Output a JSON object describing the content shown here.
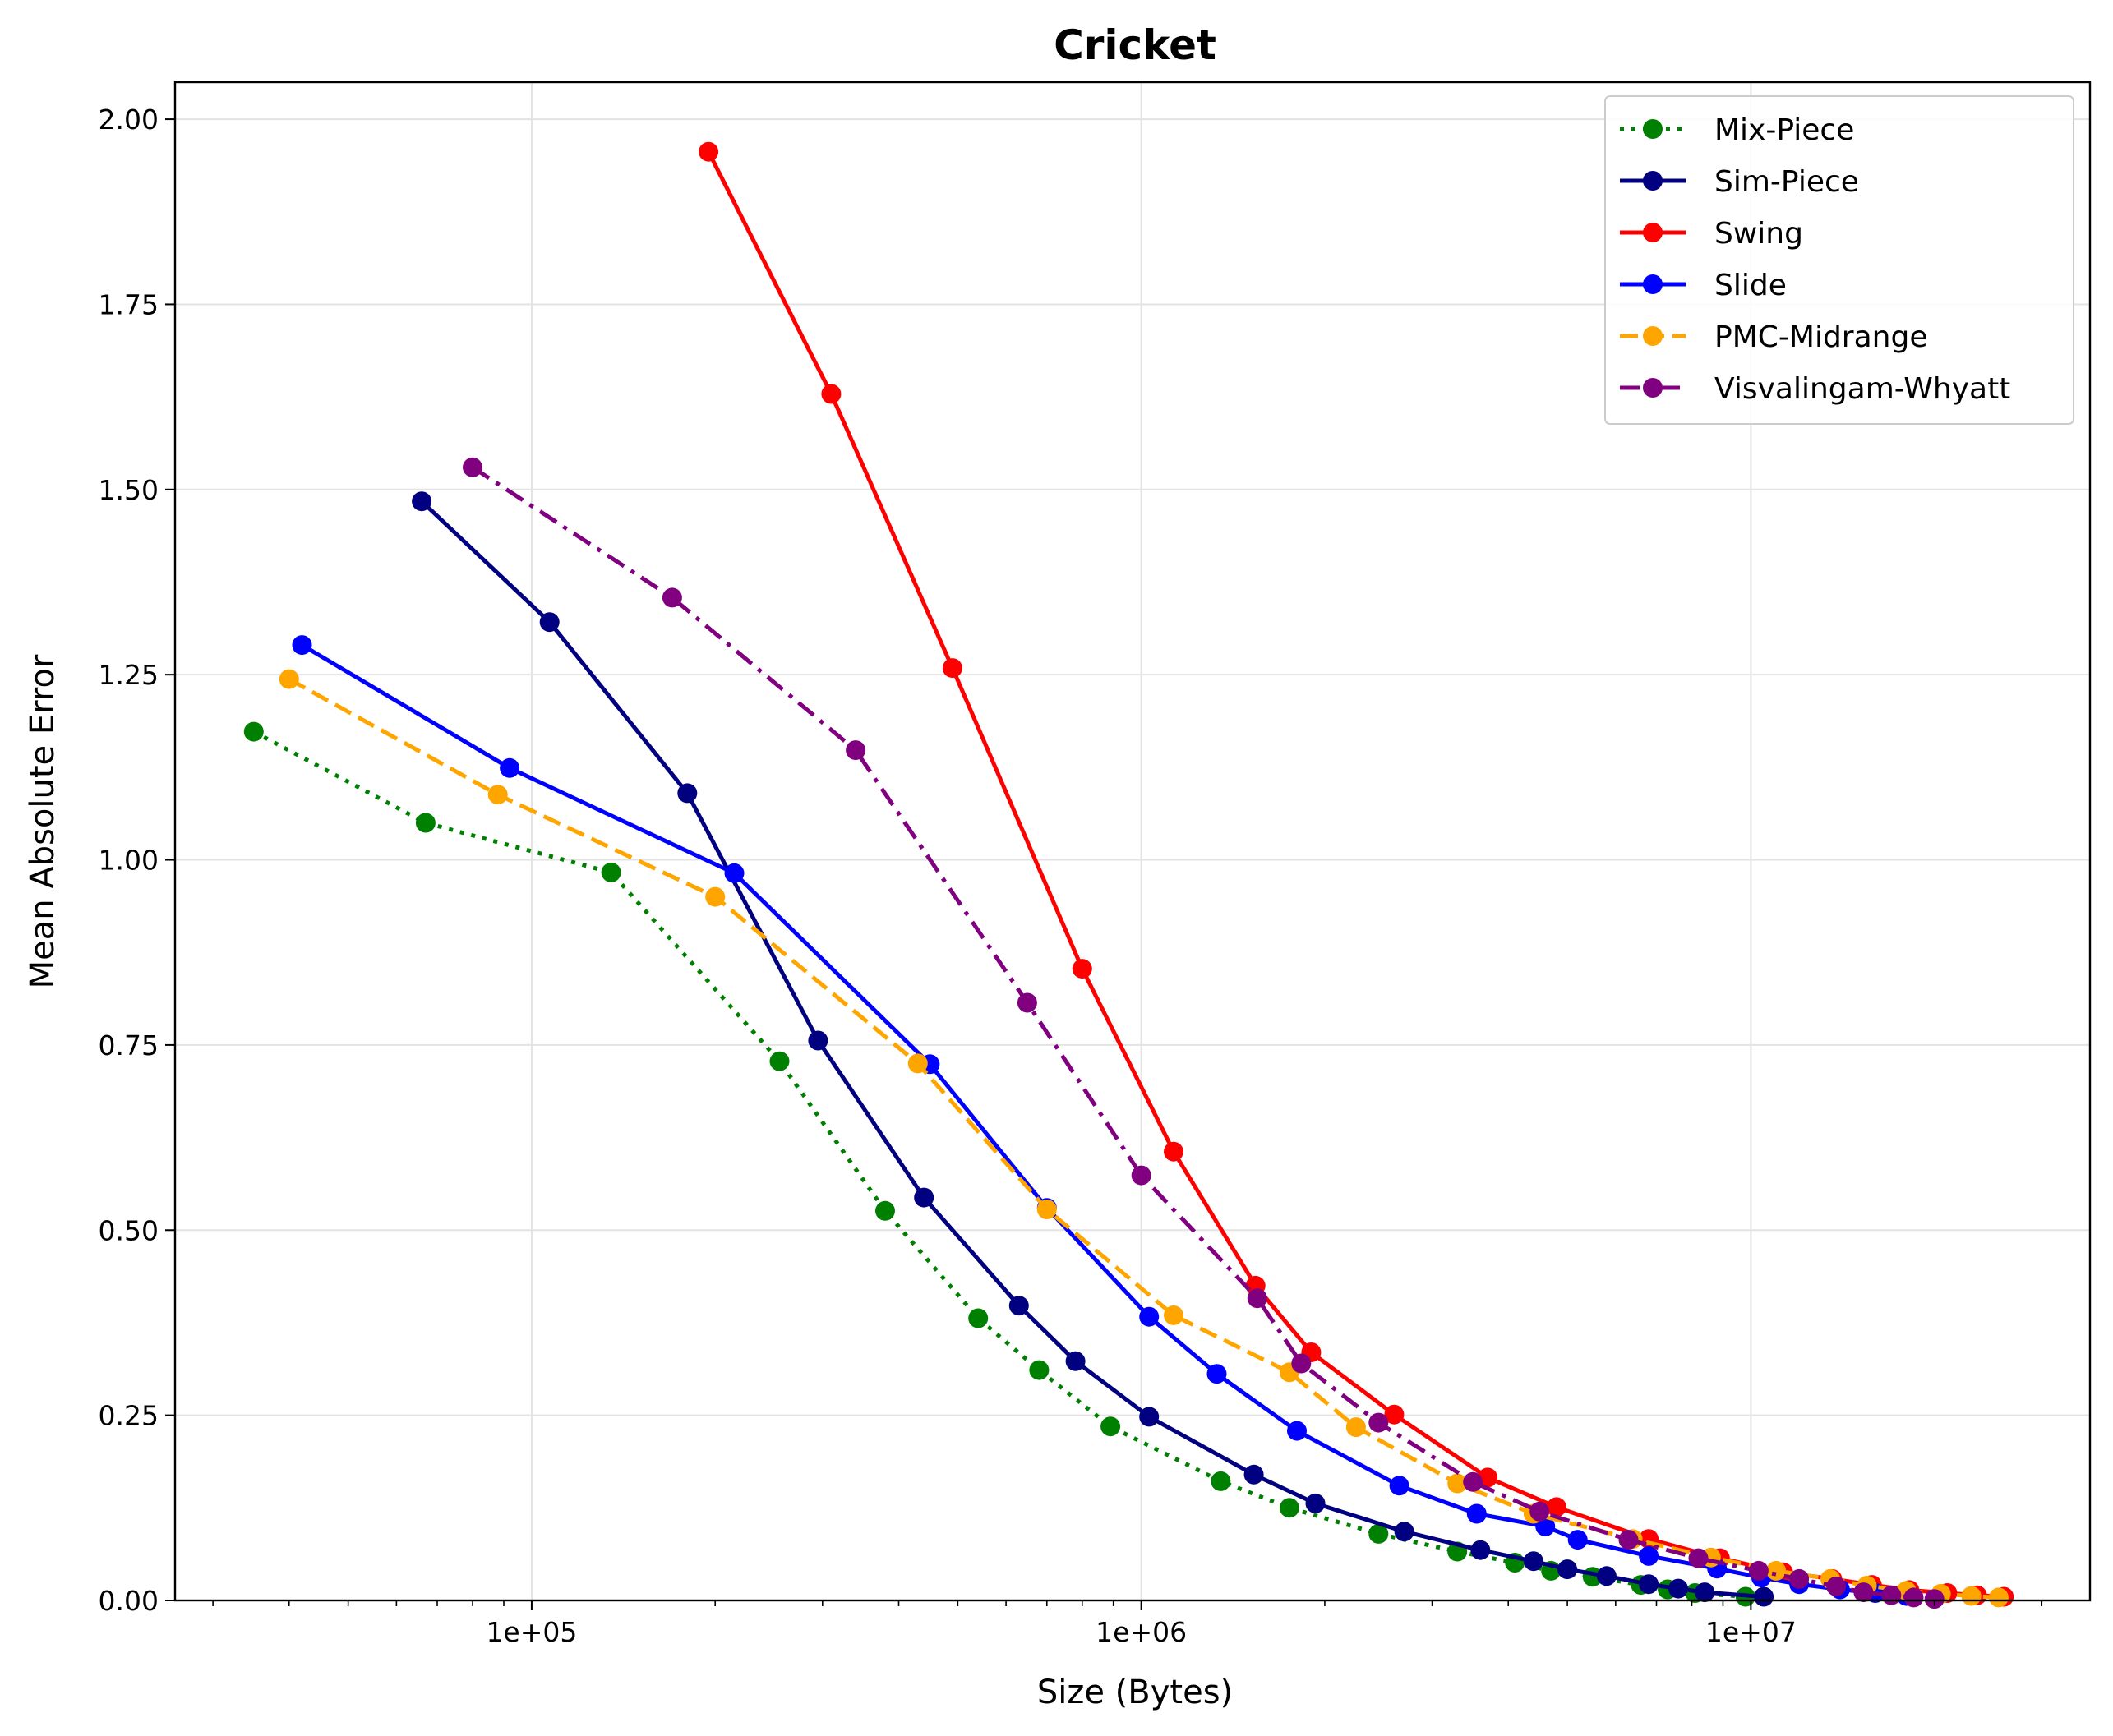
{
  "chart_data": {
    "type": "line",
    "title": "Cricket",
    "xlabel": "Size (Bytes)",
    "ylabel": "Mean Absolute Error",
    "xscale": "log",
    "xlim": [
      26000,
      36000000
    ],
    "ylim": [
      0,
      2.05
    ],
    "x_ticks": [
      100000,
      1000000,
      10000000
    ],
    "x_tick_labels": [
      "1e+05",
      "1e+06",
      "1e+07"
    ],
    "y_ticks": [
      0,
      0.25,
      0.5,
      0.75,
      1.0,
      1.25,
      1.5,
      1.75,
      2.0
    ],
    "y_tick_labels": [
      "0.00",
      "0.25",
      "0.50",
      "0.75",
      "1.00",
      "1.25",
      "1.50",
      "1.75",
      "2.00"
    ],
    "grid": true,
    "legend_position": "top-right",
    "series": [
      {
        "name": "Mix-Piece",
        "color": "#008000",
        "linestyle": "dotted",
        "x": [
          35000,
          67000,
          135000,
          255000,
          380000,
          540000,
          680000,
          890000,
          1350000,
          1750000,
          2450000,
          3300000,
          4100000,
          4700000,
          5500000,
          6600000,
          7300000,
          8100000,
          9800000
        ],
        "y": [
          1.173,
          1.05,
          0.983,
          0.728,
          0.526,
          0.381,
          0.311,
          0.235,
          0.161,
          0.125,
          0.09,
          0.066,
          0.051,
          0.04,
          0.032,
          0.021,
          0.015,
          0.01,
          0.005
        ]
      },
      {
        "name": "Sim-Piece",
        "color": "#000080",
        "linestyle": "solid",
        "x": [
          66000,
          107000,
          180000,
          295000,
          440000,
          630000,
          780000,
          1030000,
          1530000,
          1930000,
          2700000,
          3600000,
          4400000,
          5000000,
          5800000,
          6800000,
          7600000,
          8400000,
          10500000
        ],
        "y": [
          1.484,
          1.321,
          1.09,
          0.756,
          0.544,
          0.398,
          0.323,
          0.248,
          0.17,
          0.131,
          0.093,
          0.068,
          0.053,
          0.042,
          0.033,
          0.022,
          0.016,
          0.011,
          0.005
        ]
      },
      {
        "name": "Swing",
        "color": "#ff0000",
        "linestyle": "solid",
        "x": [
          195000,
          310000,
          490000,
          800000,
          1130000,
          1540000,
          1900000,
          2600000,
          3700000,
          4800000,
          6800000,
          8900000,
          11300000,
          13600000,
          15800000,
          18200000,
          21000000,
          23500000,
          26000000
        ],
        "y": [
          1.956,
          1.629,
          1.259,
          0.853,
          0.606,
          0.425,
          0.335,
          0.251,
          0.166,
          0.126,
          0.083,
          0.057,
          0.038,
          0.029,
          0.021,
          0.014,
          0.01,
          0.007,
          0.005
        ]
      },
      {
        "name": "Slide",
        "color": "#0000ff",
        "linestyle": "solid",
        "x": [
          42000,
          92000,
          215000,
          450000,
          700000,
          1030000,
          1330000,
          1800000,
          2650000,
          3550000,
          4600000,
          5200000,
          6800000,
          8800000,
          10400000,
          12000000,
          14000000,
          16000000,
          18000000
        ],
        "y": [
          1.29,
          1.124,
          0.982,
          0.724,
          0.53,
          0.383,
          0.306,
          0.229,
          0.155,
          0.117,
          0.1,
          0.082,
          0.06,
          0.043,
          0.031,
          0.022,
          0.015,
          0.01,
          0.006
        ]
      },
      {
        "name": "PMC-Midrange",
        "color": "#ffa500",
        "linestyle": "dashed",
        "x": [
          40000,
          88000,
          200000,
          430000,
          700000,
          1130000,
          1750000,
          2250000,
          3300000,
          4400000,
          6400000,
          8600000,
          11000000,
          13500000,
          15500000,
          18000000,
          20500000,
          23000000,
          25500000
        ],
        "y": [
          1.244,
          1.088,
          0.95,
          0.725,
          0.528,
          0.385,
          0.308,
          0.234,
          0.158,
          0.117,
          0.083,
          0.058,
          0.04,
          0.029,
          0.02,
          0.013,
          0.009,
          0.006,
          0.004
        ]
      },
      {
        "name": "Visvalingam-Whyatt",
        "color": "#800080",
        "linestyle": "dashdot",
        "x": [
          80000,
          170000,
          340000,
          650000,
          1000000,
          1550000,
          1830000,
          2450000,
          3500000,
          4500000,
          6300000,
          8200000,
          10300000,
          12000000,
          13800000,
          15300000,
          17000000,
          18500000,
          20000000
        ],
        "y": [
          1.53,
          1.354,
          1.148,
          0.807,
          0.574,
          0.408,
          0.32,
          0.24,
          0.16,
          0.12,
          0.082,
          0.057,
          0.04,
          0.029,
          0.019,
          0.011,
          0.007,
          0.004,
          0.002
        ]
      }
    ]
  }
}
